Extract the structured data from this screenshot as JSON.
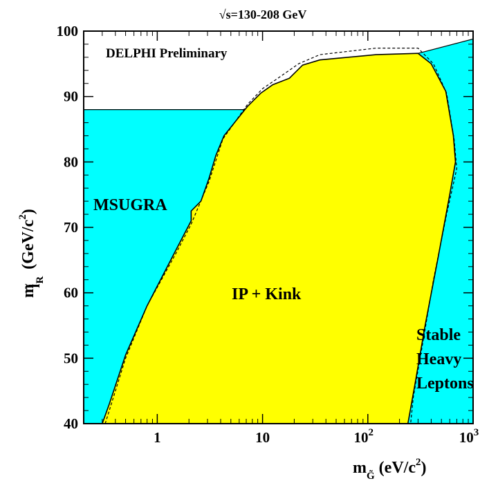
{
  "chart_data": {
    "type": "area",
    "title": "√s=130-208 GeV",
    "xscale": "log",
    "xlim": [
      0.2,
      1000
    ],
    "ylim": [
      40,
      100
    ],
    "xlabel": {
      "main": "m",
      "sub": "G̃",
      "paren": "(eV/c",
      "sup": "2",
      "close": ")"
    },
    "ylabel": {
      "main": "m",
      "sub_tilde": "~",
      "sub": "l",
      "subsub": "R",
      "paren": "(GeV/c",
      "sup": "2",
      "close": ")"
    },
    "x_ticks": [
      {
        "x": 1,
        "label": "1"
      },
      {
        "x": 10,
        "label": "10"
      },
      {
        "x": 100,
        "label": "10",
        "sup": "2"
      },
      {
        "x": 1000,
        "label": "10",
        "sup": "3"
      }
    ],
    "y_ticks": [
      40,
      50,
      60,
      70,
      80,
      90,
      100
    ],
    "colors": {
      "msugra": "#00ffff",
      "kink": "#ffff00",
      "frame": "#000000"
    },
    "labels": {
      "experiment": "DELPHI Preliminary",
      "msugra": "MSUGRA",
      "kink": "IP + Kink",
      "stable": [
        "Stable",
        "Heavy",
        "Leptons"
      ]
    },
    "regions": {
      "msugra_left": [
        [
          0.2,
          40
        ],
        [
          0.2,
          88
        ],
        [
          7.2,
          88
        ],
        [
          7.2,
          40
        ]
      ],
      "stable_right": [
        [
          240,
          40
        ],
        [
          300,
          96.6
        ],
        [
          1000,
          98.8
        ],
        [
          1000,
          40
        ]
      ],
      "ip_kink": [
        [
          0.3,
          40
        ],
        [
          0.35,
          43
        ],
        [
          0.5,
          50.5
        ],
        [
          0.8,
          58
        ],
        [
          1.5,
          66.5
        ],
        [
          2.1,
          71
        ],
        [
          2.1,
          72.5
        ],
        [
          2.6,
          74
        ],
        [
          3.1,
          77.5
        ],
        [
          3.6,
          81
        ],
        [
          4.3,
          84
        ],
        [
          7.2,
          88.5
        ],
        [
          9.6,
          90.5
        ],
        [
          12.5,
          91.8
        ],
        [
          18,
          92.8
        ],
        [
          24,
          94.8
        ],
        [
          35,
          95.6
        ],
        [
          120,
          96.4
        ],
        [
          300,
          96.6
        ],
        [
          400,
          95
        ],
        [
          550,
          90.8
        ],
        [
          650,
          84
        ],
        [
          680,
          80
        ],
        [
          600,
          75
        ],
        [
          460,
          65
        ],
        [
          350,
          55
        ],
        [
          280,
          46
        ],
        [
          240,
          40
        ]
      ],
      "dashed_limit": [
        [
          0.32,
          40
        ],
        [
          0.5,
          50
        ],
        [
          0.8,
          58
        ],
        [
          1.5,
          66
        ],
        [
          2.1,
          70.5
        ],
        [
          3.1,
          77
        ],
        [
          4.2,
          83.5
        ],
        [
          7.2,
          88.8
        ],
        [
          10,
          91.2
        ],
        [
          14,
          92.8
        ],
        [
          22,
          95
        ],
        [
          35,
          96.4
        ],
        [
          120,
          97.4
        ],
        [
          300,
          97.4
        ],
        [
          420,
          95
        ],
        [
          560,
          90.5
        ],
        [
          660,
          83.5
        ],
        [
          700,
          79
        ],
        [
          560,
          72
        ],
        [
          420,
          62
        ],
        [
          330,
          52
        ],
        [
          270,
          44
        ],
        [
          255,
          40
        ]
      ]
    }
  }
}
